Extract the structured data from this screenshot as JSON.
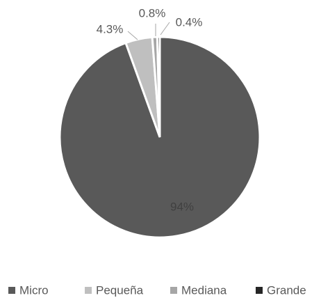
{
  "chart_data": {
    "type": "pie",
    "categories": [
      "Micro",
      "Pequeña",
      "Mediana",
      "Grande"
    ],
    "values": [
      94,
      4.3,
      0.8,
      0.4
    ],
    "value_labels": [
      "94%",
      "4.3%",
      "0.8%",
      "0.4%"
    ],
    "colors": [
      "#595959",
      "#bfbfbf",
      "#a6a6a6",
      "#262626"
    ],
    "legend": "bottom"
  }
}
